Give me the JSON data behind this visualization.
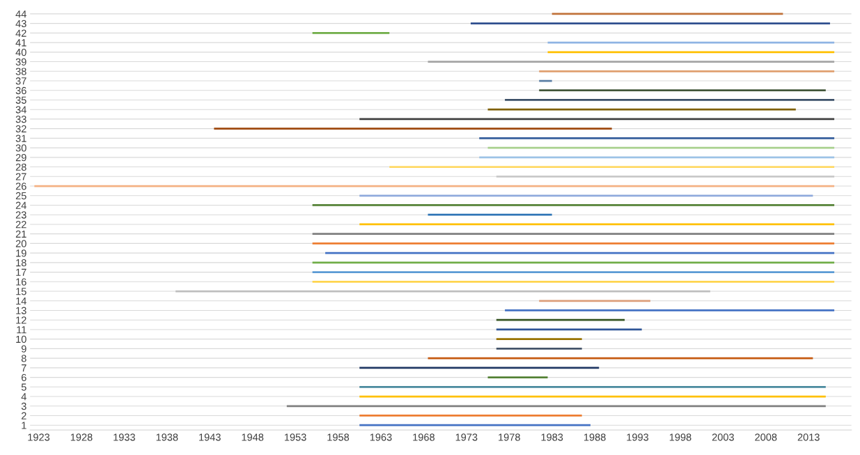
{
  "chart_data": {
    "type": "bar",
    "orientation": "horizontal",
    "categories": [
      "44",
      "43",
      "42",
      "41",
      "40",
      "39",
      "38",
      "37",
      "36",
      "35",
      "34",
      "33",
      "32",
      "31",
      "30",
      "29",
      "28",
      "27",
      "26",
      "25",
      "24",
      "23",
      "22",
      "21",
      "20",
      "19",
      "18",
      "17",
      "16",
      "15",
      "14",
      "13",
      "12",
      "11",
      "10",
      "9",
      "8",
      "7",
      "6",
      "5",
      "4",
      "3",
      "2",
      "1"
    ],
    "base": [
      1983,
      1973.5,
      1955,
      1982.5,
      1982.5,
      1968.5,
      1981.5,
      1981.5,
      1981.5,
      1977.5,
      1975.5,
      1960.5,
      1943.5,
      1974.5,
      1975.5,
      1974.5,
      1964,
      1976.5,
      1922.5,
      1960.5,
      1955,
      1968.5,
      1960.5,
      1955,
      1955,
      1956.5,
      1955,
      1955,
      1955,
      1939,
      1981.5,
      1977.5,
      1976.5,
      1976.5,
      1976.5,
      1976.5,
      1968.5,
      1960.5,
      1975.5,
      1960.5,
      1960.5,
      1952,
      1960.5,
      1960.5
    ],
    "values": [
      27,
      42,
      9,
      33.5,
      33.5,
      47.5,
      34.5,
      1.5,
      33.5,
      38.5,
      36,
      55.5,
      46.5,
      41.5,
      40.5,
      41.5,
      52,
      39.5,
      93.5,
      53,
      61,
      14.5,
      55.5,
      61,
      61,
      59.5,
      61,
      61,
      61,
      62.5,
      13,
      38.5,
      15,
      17,
      10,
      10,
      45,
      28,
      7,
      54.5,
      54.5,
      63,
      26,
      27
    ],
    "colors": [
      "#c0723a",
      "#2f4f8f",
      "#70ad47",
      "#8fb4e3",
      "#ffc000",
      "#a5a5a5",
      "#e0a070",
      "#5b7fa5",
      "#43573a",
      "#3c5068",
      "#7f6000",
      "#404040",
      "#9e480e",
      "#355e9c",
      "#a9d18e",
      "#9dc3e6",
      "#ffd966",
      "#c9c9c9",
      "#f4b183",
      "#8faadc",
      "#548235",
      "#2e75b6",
      "#ffc000",
      "#7f7f7f",
      "#ed7d31",
      "#4472c4",
      "#70ad47",
      "#5b9bd5",
      "#ffd54f",
      "#bfbfbf",
      "#dd9e7a",
      "#4472c4",
      "#375623",
      "#2f5597",
      "#997300",
      "#44546a",
      "#c55a11",
      "#203864",
      "#548235",
      "#4a8a9e",
      "#ffc000",
      "#808080",
      "#ed7d31",
      "#4472c4"
    ],
    "xlim": [
      1922,
      2018
    ],
    "xticks": [
      1923,
      1928,
      1933,
      1938,
      1943,
      1948,
      1953,
      1958,
      1963,
      1968,
      1973,
      1978,
      1983,
      1988,
      1993,
      1998,
      2003,
      2008,
      2013
    ],
    "grid": "y"
  }
}
